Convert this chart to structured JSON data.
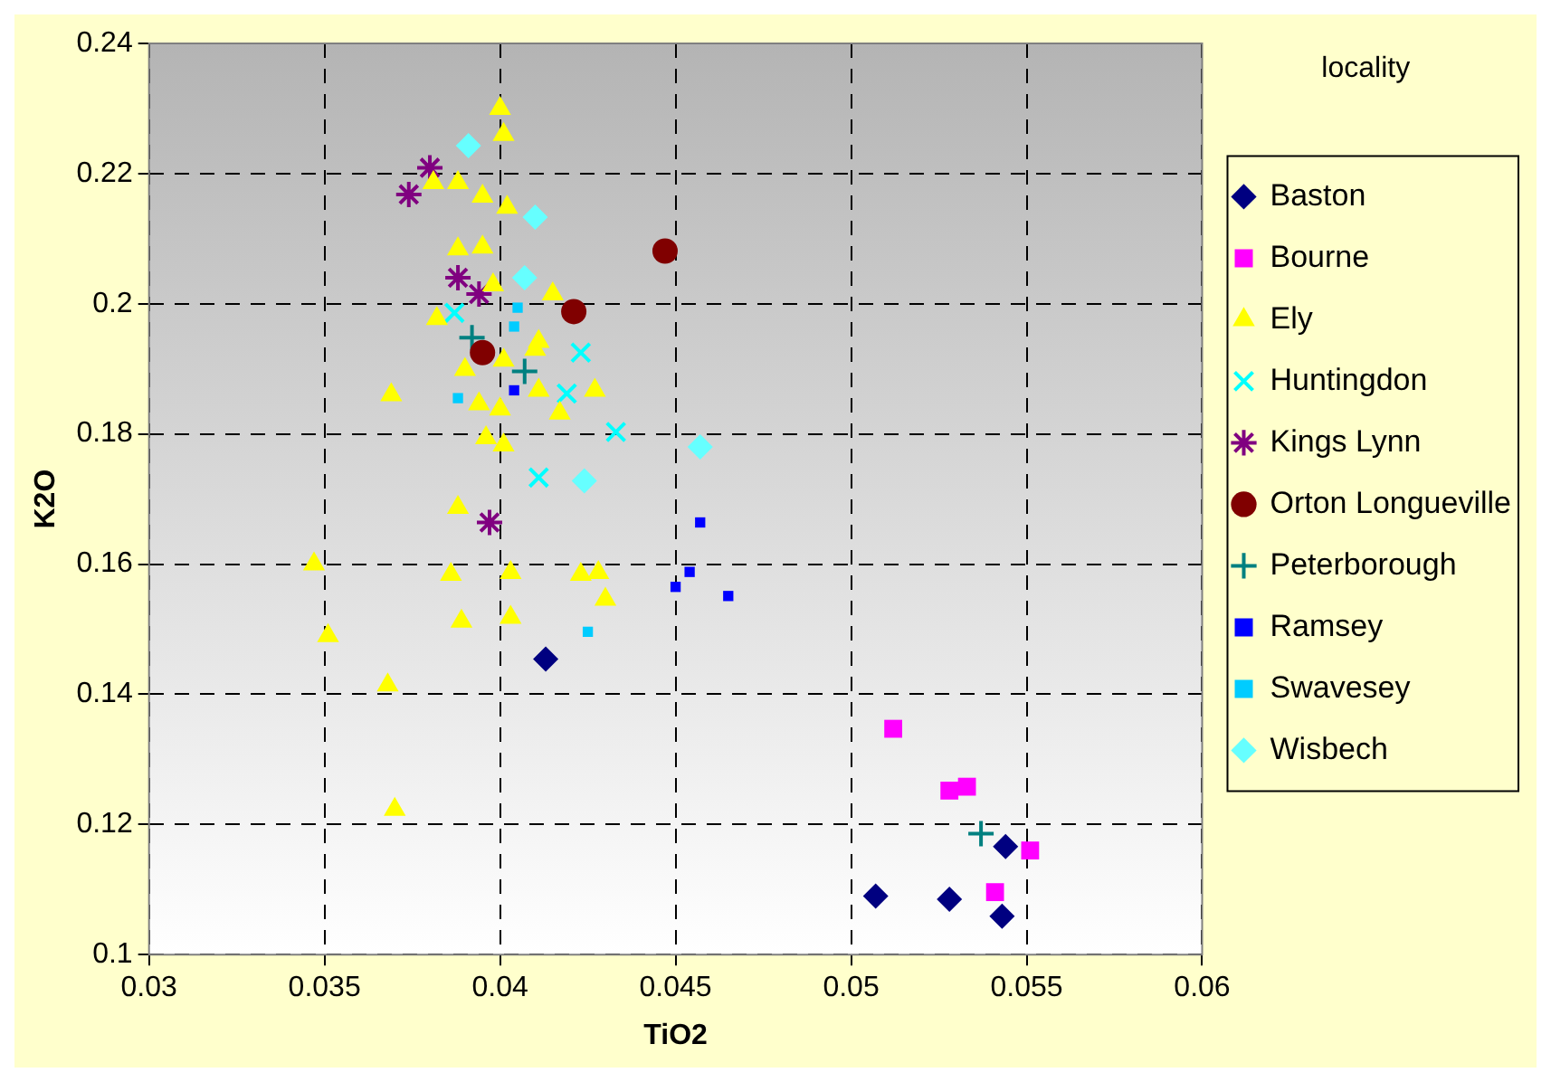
{
  "chart_data": {
    "type": "scatter",
    "xlabel": "TiO2",
    "ylabel": "K2O",
    "legend_title": "locality",
    "legend": "right",
    "grid": true,
    "xlim": [
      0.03,
      0.06
    ],
    "xticks": [
      0.03,
      0.035,
      0.04,
      0.045,
      0.05,
      0.055,
      0.06
    ],
    "ylim": [
      0.1,
      0.24
    ],
    "yticks": [
      0.1,
      0.12,
      0.14,
      0.16,
      0.18,
      0.2,
      0.22,
      0.24
    ],
    "series": [
      {
        "name": "Baston",
        "color": "#000080",
        "marker": "diamond",
        "x": [
          0.0413,
          0.0507,
          0.0528,
          0.0543,
          0.0544
        ],
        "values": [
          0.1454,
          0.109,
          0.1085,
          0.1059,
          0.1166
        ]
      },
      {
        "name": "Bourne",
        "color": "#ff00ff",
        "marker": "square",
        "x": [
          0.0512,
          0.0528,
          0.0533,
          0.0551,
          0.0541
        ],
        "values": [
          0.1347,
          0.1252,
          0.1258,
          0.116,
          0.1096
        ]
      },
      {
        "name": "Ely",
        "color": "#ffff00",
        "marker": "triangle",
        "x": [
          0.04,
          0.0401,
          0.0381,
          0.0388,
          0.0395,
          0.0402,
          0.0388,
          0.0395,
          0.0398,
          0.0415,
          0.0382,
          0.0411,
          0.041,
          0.039,
          0.0401,
          0.0427,
          0.0411,
          0.0369,
          0.0394,
          0.04,
          0.0417,
          0.0396,
          0.0401,
          0.0388,
          0.0347,
          0.0386,
          0.0403,
          0.0423,
          0.0428,
          0.043,
          0.0389,
          0.0403,
          0.0351,
          0.0368,
          0.037
        ],
        "values": [
          0.23,
          0.226,
          0.2186,
          0.2186,
          0.2165,
          0.2148,
          0.2084,
          0.2087,
          0.2029,
          0.2015,
          0.1977,
          0.1942,
          0.193,
          0.1899,
          0.1913,
          0.1867,
          0.1867,
          0.186,
          0.1846,
          0.1838,
          0.1832,
          0.1794,
          0.1783,
          0.1687,
          0.16,
          0.1584,
          0.1587,
          0.1584,
          0.1587,
          0.1546,
          0.1512,
          0.1518,
          0.149,
          0.1414,
          0.1223
        ]
      },
      {
        "name": "Huntingdon",
        "color": "#00ffff",
        "marker": "x",
        "x": [
          0.0387,
          0.0423,
          0.0419,
          0.0433,
          0.0411
        ],
        "values": [
          0.1986,
          0.1925,
          0.1862,
          0.1803,
          0.1733
        ]
      },
      {
        "name": "Kings Lynn",
        "color": "#800080",
        "x": [
          0.038,
          0.0374,
          0.0388,
          0.0394,
          0.0397
        ],
        "values": [
          0.2209,
          0.2168,
          0.204,
          0.2015,
          0.1664
        ]
      },
      {
        "name": "Orton Longueville",
        "color": "#800000",
        "marker": "circle",
        "x": [
          0.0447,
          0.0421,
          0.0395
        ],
        "values": [
          0.2081,
          0.1988,
          0.1925
        ]
      },
      {
        "name": "Peterborough",
        "color": "#008080",
        "marker": "cross",
        "x": [
          0.0392,
          0.0407,
          0.0537
        ],
        "values": [
          0.1948,
          0.1896,
          0.1186
        ]
      },
      {
        "name": "Ramsey",
        "color": "#0000ff",
        "marker": "square",
        "x": [
          0.0404,
          0.0457,
          0.0454,
          0.045,
          0.0465
        ],
        "values": [
          0.1867,
          0.1664,
          0.1588,
          0.1565,
          0.1551
        ]
      },
      {
        "name": "Swavesey",
        "color": "#00ccff",
        "marker": "square",
        "x": [
          0.0405,
          0.0404,
          0.0388,
          0.0425
        ],
        "values": [
          0.1994,
          0.1965,
          0.1855,
          0.1496
        ]
      },
      {
        "name": "Wisbech",
        "color": "#66ffff",
        "marker": "diamond",
        "x": [
          0.0391,
          0.041,
          0.0407,
          0.0457,
          0.0424
        ],
        "values": [
          0.2243,
          0.2133,
          0.204,
          0.178,
          0.1728
        ]
      }
    ]
  }
}
